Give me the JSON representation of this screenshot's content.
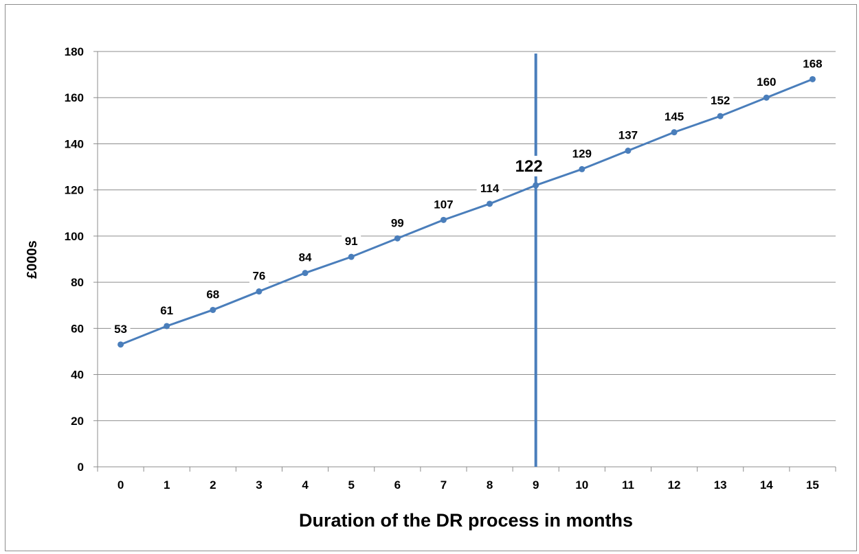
{
  "chart_data": {
    "type": "line",
    "title": "",
    "xlabel": "Duration of the DR process in months",
    "ylabel": "£000s",
    "x": [
      0,
      1,
      2,
      3,
      4,
      5,
      6,
      7,
      8,
      9,
      10,
      11,
      12,
      13,
      14,
      15
    ],
    "series": [
      {
        "values": [
          53,
          61,
          68,
          76,
          84,
          91,
          99,
          107,
          114,
          122,
          129,
          137,
          145,
          152,
          160,
          168
        ],
        "data_labels": [
          "53",
          "61",
          "68",
          "76",
          "84",
          "91",
          "99",
          "107",
          "114",
          "122",
          "129",
          "137",
          "145",
          "152",
          "160",
          "168"
        ],
        "color": "#4a7ebb"
      }
    ],
    "ylim": [
      0,
      180
    ],
    "y_ticks": [
      "0",
      "20",
      "40",
      "60",
      "80",
      "100",
      "120",
      "140",
      "160",
      "180"
    ],
    "x_ticks": [
      "0",
      "1",
      "2",
      "3",
      "4",
      "5",
      "6",
      "7",
      "8",
      "9",
      "10",
      "11",
      "12",
      "13",
      "14",
      "15"
    ],
    "grid": "horizontal",
    "legend": "none",
    "marker_line": {
      "x": 9,
      "color": "#4a7ebb"
    },
    "highlight_label_index": 9
  }
}
